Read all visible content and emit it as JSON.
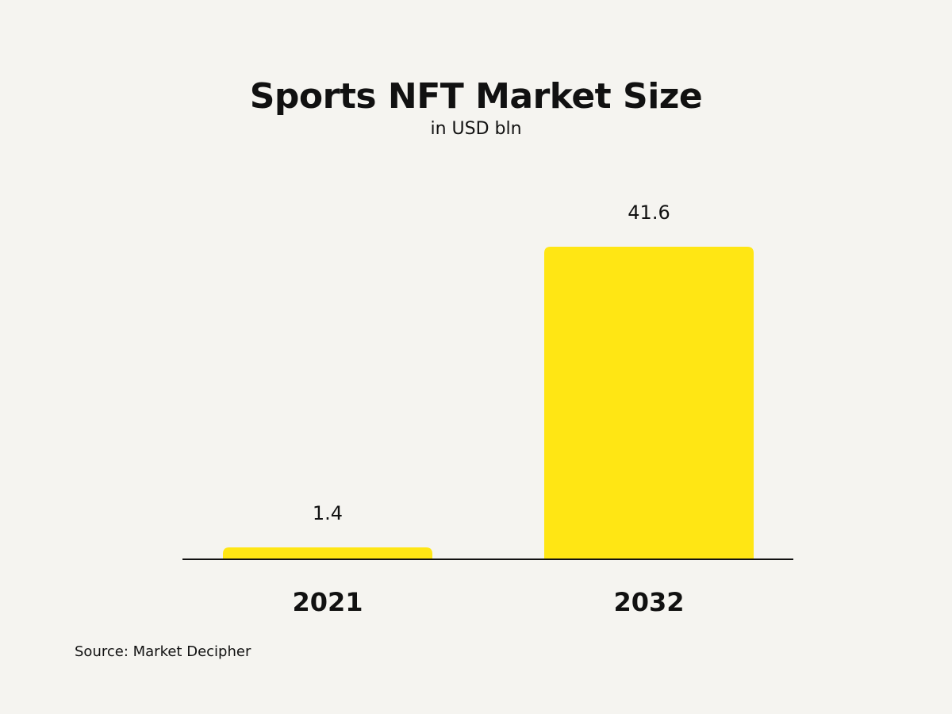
{
  "chart_data": {
    "type": "bar",
    "title": "Sports NFT Market Size",
    "subtitle": "in USD bln",
    "categories": [
      "2021",
      "2032"
    ],
    "values": [
      1.4,
      41.6
    ],
    "value_labels": [
      "1.4",
      "41.6"
    ],
    "xlabel": "",
    "ylabel": "",
    "ylim": [
      0,
      41.6
    ],
    "grid": false,
    "legend": "none",
    "source": "Source: Market Decipher"
  },
  "colors": {
    "background": "#f5f4f0",
    "bar": "#ffe614",
    "text": "#111111",
    "axis": "#111111"
  }
}
